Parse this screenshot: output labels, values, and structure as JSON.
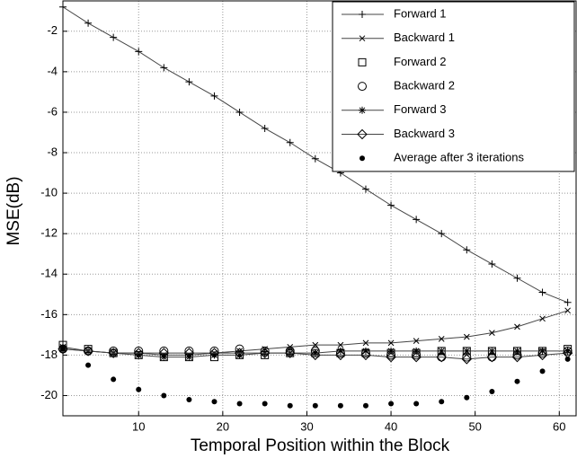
{
  "chart_data": {
    "type": "line",
    "xlabel": "Temporal Position within the Block",
    "ylabel": "MSE(dB)",
    "x": [
      1,
      4,
      7,
      10,
      13,
      16,
      19,
      22,
      25,
      28,
      31,
      34,
      37,
      40,
      43,
      46,
      49,
      52,
      55,
      58,
      61
    ],
    "xlim": [
      1,
      62
    ],
    "ylim": [
      -21,
      -0.5
    ],
    "xticks": [
      10,
      20,
      30,
      40,
      50,
      60
    ],
    "yticks": [
      -20,
      -18,
      -16,
      -14,
      -12,
      -10,
      -8,
      -6,
      -4,
      -2
    ],
    "grid": true,
    "legend": "upper right",
    "series": [
      {
        "name": "Forward 1",
        "color": "#000000",
        "marker": "plus",
        "linestyle": "solid",
        "values": [
          -0.8,
          -1.6,
          -2.3,
          -3.0,
          -3.8,
          -4.5,
          -5.2,
          -6.0,
          -6.8,
          -7.5,
          -8.3,
          -9.0,
          -9.8,
          -10.6,
          -11.3,
          -12.0,
          -12.8,
          -13.5,
          -14.2,
          -14.9,
          -15.4
        ]
      },
      {
        "name": "Backward 1",
        "color": "#000000",
        "marker": "x",
        "linestyle": "solid",
        "values": [
          -17.7,
          -17.8,
          -17.9,
          -17.9,
          -18.0,
          -18.0,
          -17.9,
          -17.8,
          -17.7,
          -17.6,
          -17.5,
          -17.5,
          -17.4,
          -17.4,
          -17.3,
          -17.2,
          -17.1,
          -16.9,
          -16.6,
          -16.2,
          -15.8
        ]
      },
      {
        "name": "Forward 2",
        "color": "#000000",
        "marker": "square",
        "linestyle": "none",
        "values": [
          -17.5,
          -17.7,
          -17.9,
          -18.0,
          -18.1,
          -18.1,
          -18.1,
          -18.0,
          -18.0,
          -17.9,
          -17.9,
          -17.9,
          -17.9,
          -17.9,
          -17.9,
          -17.8,
          -17.8,
          -17.8,
          -17.8,
          -17.8,
          -17.7
        ]
      },
      {
        "name": "Backward 2",
        "color": "#000000",
        "marker": "circle",
        "linestyle": "none",
        "values": [
          -17.7,
          -17.8,
          -17.8,
          -17.8,
          -17.8,
          -17.8,
          -17.8,
          -17.7,
          -17.8,
          -17.8,
          -17.8,
          -17.9,
          -17.9,
          -18.0,
          -18.0,
          -18.1,
          -18.1,
          -18.1,
          -18.0,
          -17.9,
          -17.8
        ]
      },
      {
        "name": "Forward 3",
        "color": "#000000",
        "marker": "star",
        "linestyle": "solid",
        "values": [
          -17.6,
          -17.8,
          -17.9,
          -18.0,
          -18.1,
          -18.1,
          -18.0,
          -18.0,
          -17.9,
          -17.9,
          -17.9,
          -17.8,
          -17.8,
          -17.8,
          -17.8,
          -17.8,
          -17.8,
          -17.8,
          -17.8,
          -17.8,
          -17.8
        ]
      },
      {
        "name": "Backward 3",
        "color": "#000000",
        "marker": "diamond",
        "linestyle": "solid",
        "values": [
          -17.7,
          -17.8,
          -17.9,
          -17.9,
          -17.9,
          -17.9,
          -17.9,
          -17.9,
          -17.9,
          -17.9,
          -18.0,
          -18.0,
          -18.0,
          -18.1,
          -18.1,
          -18.1,
          -18.2,
          -18.1,
          -18.1,
          -18.0,
          -17.9
        ]
      },
      {
        "name": "Average after 3 iterations",
        "color": "#000000",
        "marker": "dot",
        "linestyle": "none",
        "values": [
          -17.7,
          -18.5,
          -19.2,
          -19.7,
          -20.0,
          -20.2,
          -20.3,
          -20.4,
          -20.4,
          -20.5,
          -20.5,
          -20.5,
          -20.5,
          -20.4,
          -20.4,
          -20.3,
          -20.1,
          -19.8,
          -19.3,
          -18.8,
          -18.2
        ]
      }
    ]
  }
}
